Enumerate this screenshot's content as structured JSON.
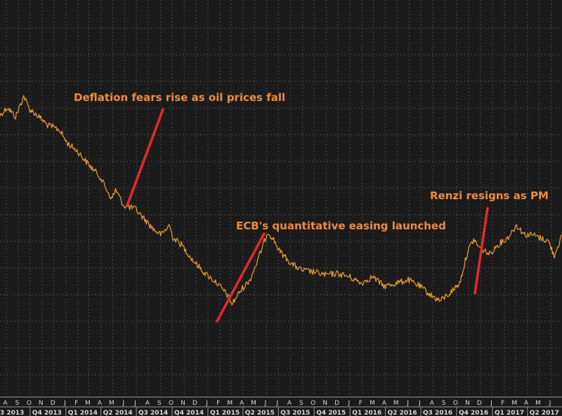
{
  "chart_data": {
    "type": "line",
    "title": "",
    "xlabel": "",
    "ylabel": "",
    "x_range": [
      "2013-08-01",
      "2017-07-15"
    ],
    "grid": true,
    "line_color": "#f0a030",
    "background": "#1b1b1b",
    "annotation_color": "#f08a3e",
    "arrow_color": "#e8282a",
    "month_ticks": [
      "A",
      "S",
      "O",
      "N",
      "D",
      "J",
      "F",
      "M",
      "A",
      "M",
      "J",
      "J",
      "A",
      "S",
      "O",
      "N",
      "D",
      "J",
      "F",
      "M",
      "A",
      "M",
      "J",
      "J",
      "A",
      "S",
      "O",
      "N",
      "D",
      "J",
      "F",
      "M",
      "A",
      "M",
      "J",
      "J",
      "A",
      "S",
      "O",
      "N",
      "D",
      "J",
      "F",
      "M",
      "A",
      "M",
      "J"
    ],
    "quarter_ticks": [
      "3 2013",
      "Q4 2013",
      "Q1 2014",
      "Q2 2014",
      "Q3 2014",
      "Q4 2014",
      "Q1 2015",
      "Q2 2015",
      "Q3 2015",
      "Q4 2015",
      "Q1 2016",
      "Q2 2016",
      "Q3 2016",
      "Q4 2016",
      "Q1 2017",
      "Q2 2017"
    ],
    "series": [
      {
        "color": "#f0a030",
        "points": [
          [
            "2013-08-01",
            72
          ],
          [
            "2013-08-20",
            77
          ],
          [
            "2013-09-10",
            71
          ],
          [
            "2013-10-01",
            84
          ],
          [
            "2013-10-15",
            76
          ],
          [
            "2013-11-05",
            72
          ],
          [
            "2013-12-01",
            66
          ],
          [
            "2014-01-01",
            63
          ],
          [
            "2014-01-20",
            55
          ],
          [
            "2014-02-15",
            50
          ],
          [
            "2014-03-15",
            42
          ],
          [
            "2014-04-15",
            34
          ],
          [
            "2014-05-15",
            20
          ],
          [
            "2014-05-25",
            26
          ],
          [
            "2014-06-15",
            16
          ],
          [
            "2014-07-15",
            14
          ],
          [
            "2014-08-10",
            7
          ],
          [
            "2014-09-01",
            1
          ],
          [
            "2014-09-20",
            -2
          ],
          [
            "2014-10-10",
            4
          ],
          [
            "2014-10-20",
            -4
          ],
          [
            "2014-11-10",
            -8
          ],
          [
            "2014-12-10",
            -18
          ],
          [
            "2015-01-10",
            -26
          ],
          [
            "2015-02-10",
            -32
          ],
          [
            "2015-03-10",
            -40
          ],
          [
            "2015-03-20",
            -45
          ],
          [
            "2015-04-10",
            -37
          ],
          [
            "2015-05-05",
            -30
          ],
          [
            "2015-05-25",
            -18
          ],
          [
            "2015-06-20",
            0
          ],
          [
            "2015-07-05",
            -5
          ],
          [
            "2015-07-20",
            -12
          ],
          [
            "2015-08-20",
            -20
          ],
          [
            "2015-09-15",
            -24
          ],
          [
            "2015-10-15",
            -25
          ],
          [
            "2015-11-15",
            -27
          ],
          [
            "2015-12-15",
            -26
          ],
          [
            "2016-01-15",
            -28
          ],
          [
            "2016-02-15",
            -32
          ],
          [
            "2016-03-15",
            -28
          ],
          [
            "2016-04-15",
            -34
          ],
          [
            "2016-05-15",
            -32
          ],
          [
            "2016-06-15",
            -30
          ],
          [
            "2016-07-15",
            -34
          ],
          [
            "2016-08-15",
            -40
          ],
          [
            "2016-09-05",
            -43
          ],
          [
            "2016-10-01",
            -38
          ],
          [
            "2016-10-25",
            -32
          ],
          [
            "2016-11-15",
            -12
          ],
          [
            "2016-11-30",
            -5
          ],
          [
            "2016-12-15",
            -10
          ],
          [
            "2017-01-10",
            -14
          ],
          [
            "2017-02-01",
            -8
          ],
          [
            "2017-02-25",
            -4
          ],
          [
            "2017-03-20",
            4
          ],
          [
            "2017-04-10",
            -2
          ],
          [
            "2017-05-01",
            -2
          ],
          [
            "2017-05-20",
            -4
          ],
          [
            "2017-06-10",
            -6
          ],
          [
            "2017-06-25",
            -15
          ],
          [
            "2017-07-15",
            -2
          ]
        ]
      }
    ],
    "annotations": [
      {
        "text": "Deflation fears rise as oil prices fall",
        "x": "2014-05-10",
        "y": 18
      },
      {
        "text": "ECB's quantitative easing launched",
        "x": "2015-01-05",
        "y": -26
      },
      {
        "text": "Renzi resigns as PM",
        "x": "2016-12-05",
        "y": -6
      }
    ]
  }
}
